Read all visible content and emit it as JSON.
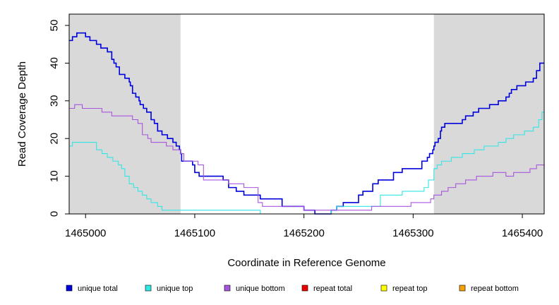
{
  "chart_data": {
    "type": "line",
    "title": "",
    "xlabel": "Coordinate in Reference Genome",
    "ylabel": "Read Coverage Depth",
    "xlim": [
      1464985,
      1465420
    ],
    "ylim": [
      0,
      53
    ],
    "x_ticks": [
      1465000,
      1465100,
      1465200,
      1465300,
      1465400
    ],
    "x_tick_labels": [
      "1465000",
      "1465100",
      "1465200",
      "1465300",
      "1465400"
    ],
    "y_ticks": [
      0,
      10,
      20,
      30,
      40,
      50
    ],
    "y_tick_labels": [
      "0",
      "10",
      "20",
      "30",
      "40",
      "50"
    ],
    "shaded_regions": [
      [
        1464985,
        1465087
      ],
      [
        1465319,
        1465420
      ]
    ],
    "shade_color": "#d9d9d9",
    "legend_position": "bottom",
    "series": [
      {
        "name": "unique total",
        "color": "#0000dd",
        "x": [
          1464985,
          1464988,
          1464992,
          1465000,
          1465004,
          1465010,
          1465014,
          1465020,
          1465024,
          1465026,
          1465028,
          1465031,
          1465036,
          1465040,
          1465041,
          1465043,
          1465046,
          1465049,
          1465050,
          1465053,
          1465056,
          1465060,
          1465063,
          1465066,
          1465070,
          1465075,
          1465080,
          1465083,
          1465086,
          1465087,
          1465088,
          1465098,
          1465100,
          1465104,
          1465108,
          1465126,
          1465131,
          1465138,
          1465145,
          1465160,
          1465180,
          1465200,
          1465210,
          1465225,
          1465230,
          1465236,
          1465250,
          1465254,
          1465263,
          1465268,
          1465282,
          1465290,
          1465308,
          1465313,
          1465315,
          1465318,
          1465319,
          1465320,
          1465323,
          1465325,
          1465326,
          1465329,
          1465345,
          1465348,
          1465355,
          1465360,
          1465370,
          1465378,
          1465385,
          1465388,
          1465390,
          1465395,
          1465403,
          1465410,
          1465413,
          1465416,
          1465420
        ],
        "y": [
          46,
          47,
          48,
          47,
          46,
          45,
          44,
          43,
          41,
          40,
          39,
          37,
          36,
          35,
          34,
          32,
          31,
          30,
          29,
          28,
          27,
          25,
          24,
          22,
          21,
          20,
          19,
          18,
          17,
          16,
          14,
          13,
          11,
          10,
          10,
          9,
          7,
          6,
          5,
          4,
          2,
          1,
          0,
          1,
          2,
          3,
          5,
          6,
          8,
          9,
          11,
          12,
          14,
          15,
          16,
          17,
          18,
          19,
          20,
          22,
          23,
          24,
          25,
          26,
          27,
          28,
          29,
          30,
          31,
          32,
          33,
          34,
          35,
          36,
          38,
          40,
          40
        ]
      },
      {
        "name": "unique top",
        "color": "#33e6e6",
        "x": [
          1464985,
          1464988,
          1465000,
          1465010,
          1465015,
          1465020,
          1465025,
          1465030,
          1465033,
          1465036,
          1465040,
          1465044,
          1465048,
          1465052,
          1465056,
          1465060,
          1465066,
          1465070,
          1465075,
          1465160,
          1465200,
          1465225,
          1465230,
          1465270,
          1465290,
          1465310,
          1465314,
          1465319,
          1465322,
          1465326,
          1465335,
          1465345,
          1465356,
          1465365,
          1465378,
          1465385,
          1465392,
          1465402,
          1465410,
          1465415,
          1465418,
          1465420
        ],
        "y": [
          18,
          19,
          19,
          17,
          16,
          15,
          14,
          13,
          12,
          10,
          8,
          7,
          6,
          5,
          4,
          3,
          2,
          1,
          1,
          0,
          0,
          1,
          2,
          5,
          6,
          7,
          9,
          12,
          13,
          14,
          15,
          16,
          17,
          18,
          19,
          20,
          21,
          22,
          23,
          25,
          27,
          27
        ]
      },
      {
        "name": "unique bottom",
        "color": "#a855e0",
        "x": [
          1464985,
          1464988,
          1464990,
          1464997,
          1465000,
          1465015,
          1465020,
          1465024,
          1465027,
          1465030,
          1465043,
          1465048,
          1465052,
          1465057,
          1465060,
          1465066,
          1465074,
          1465080,
          1465085,
          1465087,
          1465090,
          1465103,
          1465108,
          1465114,
          1465126,
          1465131,
          1465145,
          1465158,
          1465162,
          1465200,
          1465230,
          1465252,
          1465262,
          1465276,
          1465288,
          1465298,
          1465304,
          1465312,
          1465316,
          1465319,
          1465326,
          1465332,
          1465339,
          1465348,
          1465358,
          1465366,
          1465373,
          1465385,
          1465392,
          1465400,
          1465407,
          1465413,
          1465420
        ],
        "y": [
          28,
          28,
          29,
          28,
          28,
          27,
          27,
          26,
          26,
          26,
          25,
          24,
          21,
          20,
          19,
          19,
          18,
          17,
          17,
          16,
          14,
          13,
          9,
          9,
          9,
          8,
          7,
          3,
          2,
          1,
          1,
          1,
          2,
          2,
          2,
          3,
          3,
          3,
          4,
          5,
          6,
          7,
          8,
          9,
          10,
          10,
          11,
          10,
          11,
          11,
          12,
          13,
          12
        ]
      },
      {
        "name": "repeat total",
        "color": "#ee0000",
        "x": [
          1464985,
          1465420
        ],
        "y": [
          0,
          0
        ]
      },
      {
        "name": "repeat top",
        "color": "#ffff00",
        "x": [
          1464985,
          1465420
        ],
        "y": [
          0,
          0
        ]
      },
      {
        "name": "repeat bottom",
        "color": "#f5a000",
        "x": [
          1464985,
          1465420
        ],
        "y": [
          0,
          0
        ]
      }
    ]
  }
}
